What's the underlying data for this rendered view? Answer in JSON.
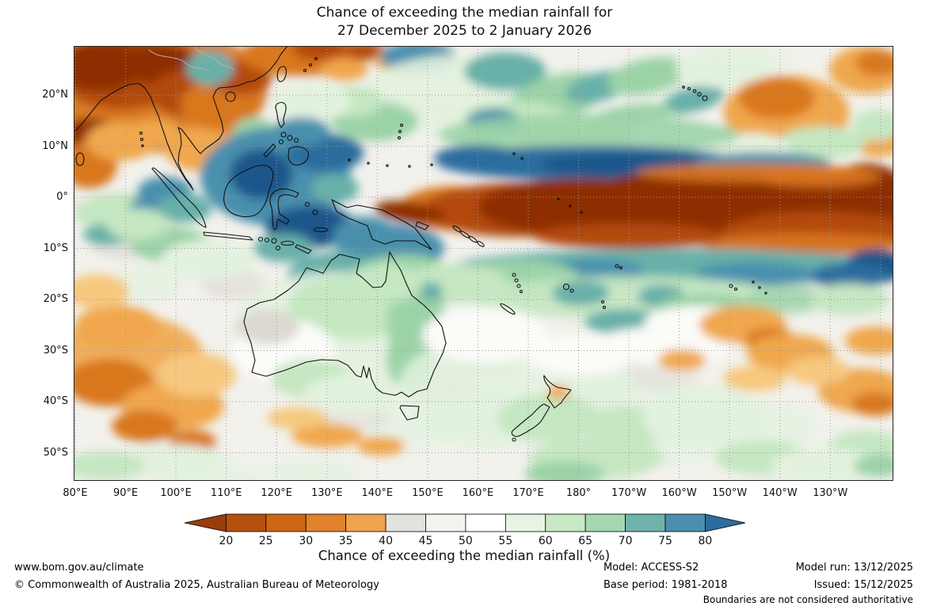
{
  "title": {
    "line1": "Chance of exceeding the median rainfall for",
    "line2": "27 December 2025 to 2 January 2026"
  },
  "map": {
    "lat_ticks": [
      "20°N",
      "10°N",
      "0°",
      "10°S",
      "20°S",
      "30°S",
      "40°S",
      "50°S"
    ],
    "lon_ticks": [
      "80°E",
      "90°E",
      "100°E",
      "110°E",
      "120°E",
      "130°E",
      "140°E",
      "150°E",
      "160°E",
      "170°E",
      "180°",
      "170°W",
      "160°W",
      "150°W",
      "140°W",
      "130°W"
    ],
    "background": "#f2f1ec",
    "palette": {
      "dr": "#8e2f06",
      "rb": "#b34a0e",
      "or": "#d9771f",
      "lo": "#f0a74e",
      "po": "#f6c87f",
      "gy": "#dcd9d1",
      "wh": "#fbfbf8",
      "pg": "#e3f2df",
      "lg": "#c5e7c1",
      "gr": "#9bd3a7",
      "tl": "#67b0a9",
      "bt": "#4890ad",
      "bl": "#2a6d9e",
      "db": "#1c578b"
    },
    "regions": [
      [
        150,
        250,
        40,
        20,
        0,
        "pg",
        0.7
      ],
      [
        480,
        90,
        60,
        30,
        0,
        "pg",
        0.7
      ],
      [
        90,
        300,
        50,
        25,
        0,
        "pg",
        0.7
      ],
      [
        520,
        470,
        90,
        40,
        0,
        "pg",
        0.8
      ],
      [
        430,
        480,
        60,
        30,
        0,
        "pg",
        0.7
      ],
      [
        700,
        450,
        80,
        35,
        0,
        "pg",
        0.7
      ],
      [
        880,
        480,
        60,
        30,
        0,
        "pg",
        0.7
      ],
      [
        980,
        520,
        60,
        25,
        0,
        "pg",
        0.8
      ],
      [
        640,
        545,
        70,
        20,
        0,
        "pg",
        0.8
      ],
      [
        300,
        540,
        60,
        20,
        0,
        "pg",
        0.7
      ],
      [
        760,
        500,
        70,
        30,
        0,
        "pg",
        0.7
      ],
      [
        180,
        545,
        60,
        20,
        0,
        "pg",
        0.7
      ],
      [
        950,
        90,
        40,
        20,
        0,
        "pg",
        0.6
      ],
      [
        860,
        20,
        50,
        18,
        0,
        "pg",
        0.6
      ],
      [
        250,
        370,
        50,
        25,
        0,
        "gy",
        0.7
      ],
      [
        520,
        390,
        60,
        25,
        0,
        "gy",
        0.6
      ],
      [
        460,
        430,
        50,
        20,
        0,
        "gy",
        0.6
      ],
      [
        200,
        300,
        40,
        20,
        0,
        "gy",
        0.6
      ],
      [
        820,
        330,
        60,
        22,
        0,
        "gy",
        0.5
      ],
      [
        740,
        415,
        50,
        20,
        0,
        "gy",
        0.5
      ],
      [
        60,
        250,
        40,
        20,
        0,
        "gy",
        0.6
      ],
      [
        350,
        470,
        50,
        18,
        0,
        "gy",
        0.5
      ],
      [
        900,
        310,
        50,
        18,
        0,
        "gy",
        0.4
      ],
      [
        95,
        55,
        150,
        80,
        0,
        "or",
        0.95
      ],
      [
        60,
        100,
        45,
        22,
        0,
        "or",
        1
      ],
      [
        60,
        35,
        80,
        45,
        0,
        "rb",
        1
      ],
      [
        35,
        25,
        55,
        32,
        0,
        "dr",
        1
      ],
      [
        110,
        22,
        48,
        26,
        0,
        "dr",
        1
      ],
      [
        150,
        60,
        55,
        30,
        0,
        "rb",
        1
      ],
      [
        22,
        115,
        40,
        24,
        0,
        "dr",
        1
      ],
      [
        20,
        150,
        35,
        30,
        0,
        "or",
        1
      ],
      [
        60,
        120,
        45,
        25,
        0,
        "lo",
        1
      ],
      [
        160,
        130,
        45,
        28,
        0,
        "lo",
        1
      ],
      [
        185,
        75,
        50,
        32,
        0,
        "or",
        1
      ],
      [
        210,
        40,
        40,
        22,
        0,
        "rb",
        1
      ],
      [
        100,
        110,
        35,
        18,
        0,
        "lo",
        1
      ],
      [
        228,
        112,
        28,
        22,
        0,
        "gr",
        1
      ],
      [
        250,
        140,
        40,
        25,
        0,
        "pg",
        1
      ],
      [
        290,
        12,
        80,
        26,
        0,
        "or",
        1
      ],
      [
        310,
        4,
        34,
        14,
        0,
        "rb",
        1
      ],
      [
        368,
        6,
        26,
        12,
        0,
        "rb",
        1
      ],
      [
        420,
        18,
        40,
        20,
        0,
        "lo",
        1
      ],
      [
        342,
        30,
        30,
        14,
        0,
        "lo",
        1
      ],
      [
        172,
        28,
        30,
        22,
        0,
        "tl",
        1
      ],
      [
        435,
        14,
        48,
        20,
        0,
        "bt",
        1
      ],
      [
        500,
        55,
        130,
        45,
        0,
        "pg",
        0.9
      ],
      [
        545,
        32,
        52,
        24,
        0,
        "tl",
        1
      ],
      [
        610,
        65,
        65,
        28,
        -15,
        "gr",
        1
      ],
      [
        662,
        52,
        42,
        18,
        -15,
        "tl",
        1
      ],
      [
        725,
        38,
        52,
        22,
        -12,
        "gr",
        1
      ],
      [
        782,
        68,
        40,
        16,
        -15,
        "tl",
        1
      ],
      [
        820,
        28,
        60,
        25,
        0,
        "pg",
        1
      ],
      [
        700,
        95,
        60,
        20,
        -10,
        "gr",
        1
      ],
      [
        560,
        95,
        70,
        25,
        0,
        "lg",
        1
      ],
      [
        530,
        95,
        34,
        16,
        0,
        "bt",
        1
      ],
      [
        640,
        120,
        80,
        25,
        -5,
        "lg",
        1
      ],
      [
        770,
        110,
        70,
        22,
        0,
        "wh",
        1
      ],
      [
        380,
        95,
        55,
        25,
        0,
        "gr",
        1
      ],
      [
        350,
        70,
        40,
        20,
        0,
        "lg",
        1
      ],
      [
        300,
        70,
        50,
        25,
        0,
        "pg",
        1
      ],
      [
        900,
        85,
        80,
        48,
        0,
        "lo",
        1
      ],
      [
        888,
        66,
        48,
        26,
        0,
        "or",
        1
      ],
      [
        1002,
        30,
        48,
        30,
        0,
        "lo",
        1
      ],
      [
        1015,
        22,
        28,
        16,
        0,
        "or",
        1
      ],
      [
        1015,
        120,
        34,
        20,
        0,
        "lo",
        1
      ],
      [
        945,
        122,
        55,
        20,
        0,
        "lg",
        1
      ],
      [
        855,
        130,
        50,
        20,
        0,
        "pg",
        1
      ],
      [
        1015,
        100,
        30,
        20,
        0,
        "lg",
        1
      ],
      [
        60,
        210,
        60,
        25,
        0,
        "lg",
        1
      ],
      [
        42,
        238,
        30,
        14,
        0,
        "tl",
        1
      ],
      [
        120,
        250,
        50,
        22,
        0,
        "gr",
        1
      ],
      [
        170,
        270,
        60,
        25,
        0,
        "pg",
        1
      ],
      [
        100,
        202,
        30,
        13,
        0,
        "bt",
        1
      ],
      [
        115,
        185,
        35,
        20,
        0,
        "bt",
        1
      ],
      [
        140,
        205,
        35,
        18,
        0,
        "tl",
        1
      ],
      [
        80,
        225,
        40,
        20,
        0,
        "lg",
        1
      ],
      [
        650,
        112,
        190,
        26,
        0,
        "gr",
        0.9
      ],
      [
        655,
        148,
        195,
        22,
        0,
        "bl",
        1
      ],
      [
        700,
        150,
        110,
        15,
        0,
        "db",
        1
      ],
      [
        870,
        148,
        85,
        14,
        0,
        "bt",
        1
      ],
      [
        510,
        142,
        55,
        17,
        0,
        "bl",
        1
      ],
      [
        255,
        165,
        95,
        62,
        0,
        "bt",
        1
      ],
      [
        237,
        162,
        40,
        32,
        0,
        "db",
        1
      ],
      [
        318,
        135,
        48,
        24,
        0,
        "bl",
        1
      ],
      [
        288,
        108,
        35,
        18,
        0,
        "bt",
        1
      ],
      [
        300,
        228,
        58,
        26,
        0,
        "db",
        1
      ],
      [
        400,
        255,
        68,
        30,
        0,
        "bt",
        1
      ],
      [
        352,
        300,
        28,
        16,
        0,
        "bl",
        1
      ],
      [
        350,
        290,
        80,
        32,
        0,
        "tl",
        1
      ],
      [
        330,
        180,
        30,
        18,
        0,
        "tl",
        1
      ],
      [
        420,
        298,
        62,
        35,
        0,
        "gr",
        1
      ],
      [
        368,
        240,
        40,
        25,
        0,
        "bt",
        1
      ],
      [
        265,
        255,
        38,
        18,
        0,
        "tl",
        1
      ],
      [
        480,
        205,
        70,
        28,
        0,
        "or",
        1
      ],
      [
        560,
        207,
        120,
        34,
        0,
        "rb",
        1
      ],
      [
        640,
        203,
        130,
        36,
        0,
        "dr",
        1
      ],
      [
        820,
        204,
        215,
        48,
        0,
        "dr",
        1
      ],
      [
        1000,
        200,
        60,
        52,
        0,
        "dr",
        1
      ],
      [
        940,
        235,
        120,
        26,
        0,
        "rb",
        1
      ],
      [
        860,
        160,
        150,
        12,
        0,
        "or",
        0.9
      ],
      [
        920,
        250,
        130,
        14,
        0,
        "or",
        0.9
      ],
      [
        700,
        240,
        120,
        16,
        0,
        "rb",
        1
      ],
      [
        425,
        210,
        45,
        13,
        8,
        "dr",
        1
      ],
      [
        940,
        165,
        80,
        14,
        0,
        "or",
        0.8
      ],
      [
        760,
        280,
        285,
        24,
        0,
        "tl",
        1
      ],
      [
        660,
        285,
        60,
        16,
        0,
        "bt",
        1
      ],
      [
        860,
        288,
        75,
        15,
        0,
        "bt",
        1
      ],
      [
        1012,
        278,
        38,
        22,
        0,
        "db",
        1
      ],
      [
        980,
        290,
        50,
        16,
        0,
        "bl",
        1
      ],
      [
        560,
        295,
        80,
        25,
        0,
        "gr",
        1
      ],
      [
        480,
        300,
        70,
        25,
        0,
        "lg",
        1
      ],
      [
        700,
        318,
        200,
        28,
        0,
        "lg",
        0.9
      ],
      [
        640,
        312,
        36,
        16,
        0,
        "tl",
        1
      ],
      [
        742,
        316,
        30,
        14,
        0,
        "tl",
        1
      ],
      [
        695,
        348,
        50,
        16,
        0,
        "tl",
        1
      ],
      [
        800,
        330,
        60,
        18,
        0,
        "gr",
        1
      ],
      [
        805,
        358,
        30,
        13,
        0,
        "tl",
        1
      ],
      [
        900,
        320,
        50,
        18,
        0,
        "gr",
        0.8
      ],
      [
        980,
        320,
        50,
        20,
        0,
        "lg",
        1
      ],
      [
        330,
        360,
        130,
        75,
        0,
        "pg",
        0.9
      ],
      [
        355,
        330,
        85,
        40,
        0,
        "lg",
        1
      ],
      [
        432,
        350,
        36,
        55,
        0,
        "gr",
        1
      ],
      [
        425,
        395,
        30,
        40,
        0,
        "gr",
        1
      ],
      [
        390,
        300,
        50,
        25,
        0,
        "lg",
        1
      ],
      [
        265,
        385,
        65,
        40,
        0,
        "wh",
        1
      ],
      [
        245,
        355,
        40,
        22,
        0,
        "gy",
        1
      ],
      [
        300,
        420,
        50,
        25,
        0,
        "lg",
        1
      ],
      [
        350,
        440,
        60,
        25,
        0,
        "pg",
        1
      ],
      [
        448,
        330,
        20,
        25,
        0,
        "gr",
        1
      ],
      [
        452,
        310,
        14,
        12,
        0,
        "tl",
        1
      ],
      [
        320,
        492,
        45,
        15,
        0,
        "lo",
        1
      ],
      [
        388,
        505,
        30,
        12,
        0,
        "lo",
        1
      ],
      [
        282,
        470,
        38,
        14,
        0,
        "po",
        1
      ],
      [
        70,
        395,
        95,
        55,
        0,
        "lo",
        0.9
      ],
      [
        45,
        425,
        55,
        30,
        0,
        "or",
        1
      ],
      [
        125,
        455,
        65,
        30,
        0,
        "lo",
        1
      ],
      [
        90,
        480,
        42,
        20,
        0,
        "or",
        1
      ],
      [
        155,
        415,
        50,
        28,
        0,
        "po",
        1
      ],
      [
        55,
        355,
        55,
        28,
        0,
        "lo",
        1
      ],
      [
        30,
        310,
        40,
        22,
        0,
        "po",
        1
      ],
      [
        150,
        500,
        30,
        15,
        0,
        "or",
        1
      ],
      [
        120,
        525,
        80,
        22,
        0,
        "pg",
        1
      ],
      [
        40,
        530,
        50,
        18,
        0,
        "lg",
        1
      ],
      [
        560,
        430,
        150,
        70,
        0,
        "pg",
        0.85
      ],
      [
        600,
        470,
        65,
        30,
        0,
        "lg",
        1
      ],
      [
        660,
        520,
        85,
        25,
        0,
        "lg",
        1
      ],
      [
        620,
        540,
        50,
        16,
        0,
        "gr",
        1
      ],
      [
        700,
        480,
        60,
        25,
        0,
        "lg",
        1
      ],
      [
        800,
        470,
        80,
        40,
        0,
        "pg",
        1
      ],
      [
        870,
        520,
        60,
        22,
        0,
        "lg",
        1
      ],
      [
        790,
        350,
        70,
        22,
        0,
        "wh",
        1
      ],
      [
        745,
        378,
        90,
        24,
        0,
        "wh",
        1
      ],
      [
        520,
        365,
        80,
        35,
        0,
        "wh",
        1
      ],
      [
        640,
        390,
        70,
        25,
        0,
        "wh",
        1
      ],
      [
        612,
        437,
        14,
        9,
        0,
        "lo",
        1
      ],
      [
        845,
        352,
        55,
        24,
        0,
        "lo",
        1
      ],
      [
        880,
        372,
        32,
        16,
        0,
        "or",
        1
      ],
      [
        905,
        388,
        55,
        24,
        0,
        "lo",
        1
      ],
      [
        995,
        435,
        55,
        28,
        0,
        "lo",
        1
      ],
      [
        1012,
        452,
        30,
        15,
        0,
        "or",
        1
      ],
      [
        768,
        396,
        30,
        13,
        0,
        "lo",
        1
      ],
      [
        940,
        410,
        40,
        18,
        0,
        "po",
        1
      ],
      [
        1012,
        372,
        38,
        18,
        0,
        "lo",
        1
      ],
      [
        860,
        420,
        40,
        16,
        0,
        "po",
        1
      ],
      [
        1000,
        505,
        45,
        20,
        0,
        "lg",
        1
      ],
      [
        950,
        530,
        70,
        22,
        0,
        "pg",
        1
      ],
      [
        1015,
        530,
        30,
        14,
        0,
        "gr",
        1
      ]
    ]
  },
  "colorbar": {
    "title": "Chance of exceeding the median rainfall (%)",
    "ticks": [
      "20",
      "25",
      "30",
      "35",
      "40",
      "45",
      "50",
      "55",
      "60",
      "65",
      "70",
      "75",
      "80"
    ],
    "segment_colors": [
      "#b5500f",
      "#cc6615",
      "#e0832c",
      "#f0a44e",
      "#e3e3de",
      "#f3f3ef",
      "#ffffff",
      "#e7f4e3",
      "#c8e9c4",
      "#a3d8b0",
      "#6fb3ad",
      "#4b8fad"
    ],
    "left_arrow_color": "#9a3d0a",
    "right_arrow_color": "#2a6d9e"
  },
  "footer": {
    "url": "www.bom.gov.au/climate",
    "copyright": "© Commonwealth of Australia 2025, Australian Bureau of Meteorology",
    "model": "Model: ACCESS-S2",
    "base_period": "Base period: 1981-2018",
    "model_run": "Model run: 13/12/2025",
    "issued": "Issued: 15/12/2025",
    "disclaimer": "Boundaries are not considered authoritative"
  }
}
